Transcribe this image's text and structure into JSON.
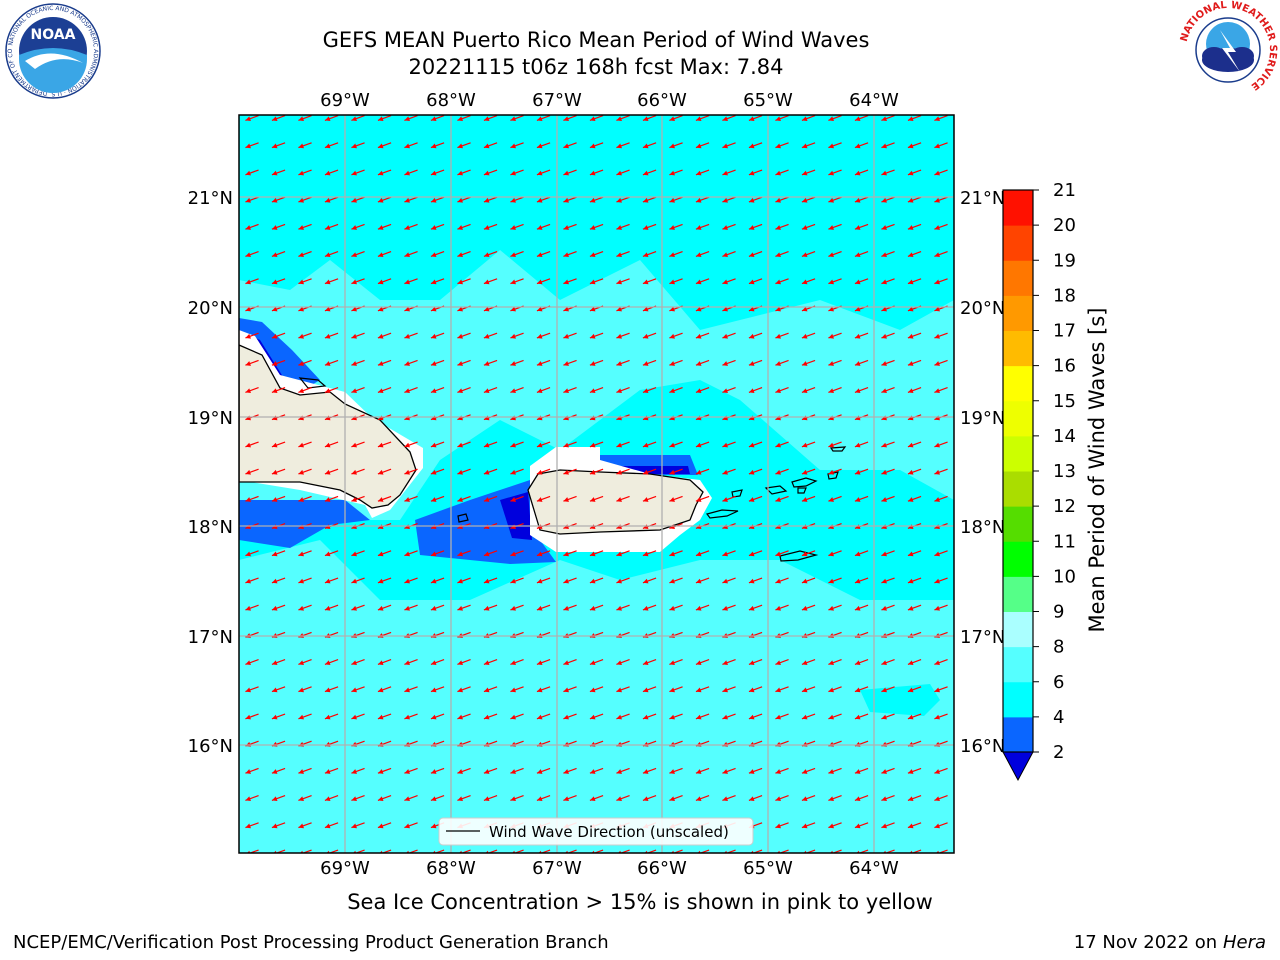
{
  "title_line1": "GEFS MEAN Puerto Rico Mean Period of Wind Waves",
  "title_line2": "20221115 t06z 168h fcst   Max: 7.84",
  "caption": "Sea Ice Concentration > 15% is shown in pink to yellow",
  "footer_left": "NCEP/EMC/Verification Post Processing Product Generation Branch",
  "footer_right_prefix": "17 Nov 2022 on",
  "footer_right_host": "Hera",
  "legend_label": "Wind Wave Direction (unscaled)",
  "colorbar": {
    "label": "Mean Period of Wind Waves [s]",
    "ticks": [
      "2",
      "4",
      "6",
      "8",
      "9",
      "10",
      "11",
      "12",
      "13",
      "14",
      "15",
      "16",
      "17",
      "18",
      "19",
      "20",
      "21"
    ],
    "colors": [
      "#0a66ff",
      "#00ffff",
      "#55ffff",
      "#aaffff",
      "#55ff88",
      "#00ff00",
      "#55dd00",
      "#aadd00",
      "#ccff00",
      "#eeff00",
      "#ffff00",
      "#ffbb00",
      "#ff9900",
      "#ff7700",
      "#ff4400",
      "#ff1100"
    ],
    "under_color": "#0000dd"
  },
  "map": {
    "lon_labels": [
      "69°W",
      "68°W",
      "67°W",
      "66°W",
      "65°W",
      "64°W"
    ],
    "lat_labels": [
      "21°N",
      "20°N",
      "19°N",
      "18°N",
      "17°N",
      "16°N"
    ],
    "ocean_color": "#55ffff",
    "arrow_color": "#ff0000",
    "land_color": "#efedde"
  },
  "logos": {
    "noaa_text": "NOAA",
    "noaa_ring_text": "NATIONAL OCEANIC AND ATMOSPHERIC ADMINISTRATION · U.S. DEPARTMENT OF COMMERCE",
    "nws_ring_text": "NATIONAL WEATHER SERVICE"
  }
}
